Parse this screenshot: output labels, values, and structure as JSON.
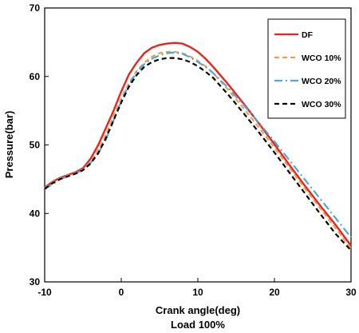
{
  "chart_data": {
    "type": "line",
    "xlabel": "Crank angle(deg)",
    "subtitle": "Load 100%",
    "ylabel": "Pressure(bar)",
    "xlim": [
      -10,
      30
    ],
    "ylim": [
      30,
      70
    ],
    "xticks": [
      -10,
      0,
      10,
      20,
      30
    ],
    "yticks": [
      30,
      40,
      50,
      60,
      70
    ],
    "grid": false,
    "legend_position": "top-right",
    "series": [
      {
        "name": "DF",
        "color": "#e8241c",
        "style": "solid",
        "points": [
          [
            -10,
            43.8
          ],
          [
            -9,
            44.6
          ],
          [
            -8,
            45.2
          ],
          [
            -7,
            45.6
          ],
          [
            -6,
            46.0
          ],
          [
            -5,
            46.6
          ],
          [
            -4,
            48.0
          ],
          [
            -3,
            50.0
          ],
          [
            -2,
            52.5
          ],
          [
            -1,
            55.0
          ],
          [
            0,
            57.8
          ],
          [
            1,
            60.3
          ],
          [
            2,
            62.0
          ],
          [
            3,
            63.4
          ],
          [
            4,
            64.2
          ],
          [
            5,
            64.6
          ],
          [
            6,
            64.8
          ],
          [
            7,
            64.9
          ],
          [
            8,
            64.8
          ],
          [
            9,
            64.3
          ],
          [
            10,
            63.6
          ],
          [
            11,
            62.6
          ],
          [
            12,
            61.4
          ],
          [
            14,
            58.8
          ],
          [
            16,
            56.0
          ],
          [
            18,
            53.1
          ],
          [
            20,
            50.1
          ],
          [
            22,
            47.0
          ],
          [
            24,
            44.0
          ],
          [
            26,
            41.1
          ],
          [
            28,
            38.3
          ],
          [
            30,
            35.3
          ]
        ]
      },
      {
        "name": "WCO 10%",
        "color": "#f0a050",
        "style": "dashed",
        "points": [
          [
            -10,
            43.7
          ],
          [
            -9,
            44.5
          ],
          [
            -8,
            45.1
          ],
          [
            -7,
            45.5
          ],
          [
            -6,
            45.9
          ],
          [
            -5,
            46.4
          ],
          [
            -4,
            47.6
          ],
          [
            -3,
            49.3
          ],
          [
            -2,
            51.6
          ],
          [
            -1,
            54.2
          ],
          [
            0,
            56.8
          ],
          [
            1,
            59.0
          ],
          [
            2,
            60.8
          ],
          [
            3,
            62.0
          ],
          [
            4,
            62.9
          ],
          [
            5,
            63.4
          ],
          [
            6,
            63.6
          ],
          [
            7,
            63.6
          ],
          [
            8,
            63.4
          ],
          [
            9,
            62.9
          ],
          [
            10,
            62.3
          ],
          [
            11,
            61.5
          ],
          [
            12,
            60.5
          ],
          [
            14,
            58.0
          ],
          [
            16,
            55.3
          ],
          [
            18,
            52.5
          ],
          [
            20,
            49.6
          ],
          [
            22,
            46.6
          ],
          [
            24,
            43.6
          ],
          [
            26,
            40.7
          ],
          [
            28,
            37.8
          ],
          [
            30,
            34.9
          ]
        ]
      },
      {
        "name": "WCO 20%",
        "color": "#4aaad8",
        "style": "dashdot",
        "points": [
          [
            -10,
            43.5
          ],
          [
            -9,
            44.3
          ],
          [
            -8,
            45.0
          ],
          [
            -7,
            45.4
          ],
          [
            -6,
            45.8
          ],
          [
            -5,
            46.4
          ],
          [
            -4,
            47.4
          ],
          [
            -3,
            48.8
          ],
          [
            -2,
            50.8
          ],
          [
            -1,
            53.6
          ],
          [
            0,
            56.4
          ],
          [
            1,
            58.8
          ],
          [
            2,
            60.6
          ],
          [
            3,
            61.8
          ],
          [
            4,
            62.6
          ],
          [
            5,
            63.1
          ],
          [
            6,
            63.4
          ],
          [
            7,
            63.5
          ],
          [
            8,
            63.3
          ],
          [
            9,
            62.8
          ],
          [
            10,
            62.1
          ],
          [
            11,
            61.4
          ],
          [
            12,
            60.5
          ],
          [
            14,
            58.3
          ],
          [
            16,
            55.8
          ],
          [
            18,
            53.2
          ],
          [
            20,
            50.5
          ],
          [
            22,
            47.7
          ],
          [
            24,
            44.9
          ],
          [
            26,
            42.1
          ],
          [
            28,
            39.3
          ],
          [
            30,
            36.5
          ]
        ]
      },
      {
        "name": "WCO 30%",
        "color": "#000000",
        "style": "dashed",
        "points": [
          [
            -10,
            43.6
          ],
          [
            -9,
            44.4
          ],
          [
            -8,
            45.0
          ],
          [
            -7,
            45.4
          ],
          [
            -6,
            45.8
          ],
          [
            -5,
            46.3
          ],
          [
            -4,
            47.3
          ],
          [
            -3,
            48.8
          ],
          [
            -2,
            51.0
          ],
          [
            -1,
            53.6
          ],
          [
            0,
            56.2
          ],
          [
            1,
            58.5
          ],
          [
            2,
            60.2
          ],
          [
            3,
            61.4
          ],
          [
            4,
            62.1
          ],
          [
            5,
            62.5
          ],
          [
            6,
            62.7
          ],
          [
            7,
            62.7
          ],
          [
            8,
            62.5
          ],
          [
            9,
            62.1
          ],
          [
            10,
            61.5
          ],
          [
            11,
            60.7
          ],
          [
            12,
            59.8
          ],
          [
            14,
            57.3
          ],
          [
            16,
            54.6
          ],
          [
            18,
            51.8
          ],
          [
            20,
            48.9
          ],
          [
            22,
            45.9
          ],
          [
            24,
            42.9
          ],
          [
            26,
            39.9
          ],
          [
            28,
            37.0
          ],
          [
            30,
            34.6
          ]
        ]
      }
    ]
  }
}
